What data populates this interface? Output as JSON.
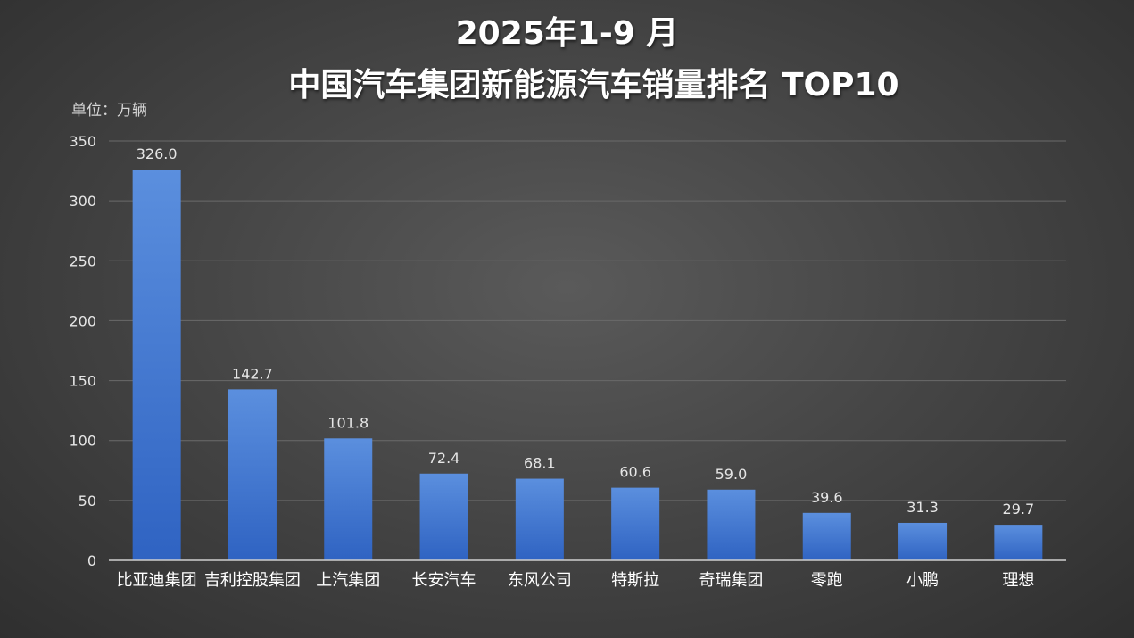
{
  "title_line1": "2025年1-9 月",
  "title_line2": "中国汽车集团新能源汽车销量排名  TOP10",
  "unit_label": "单位：万辆",
  "colors": {
    "bar_top": "#5b8fde",
    "bar_bottom": "#2f63c2",
    "text": "#ffffff",
    "axis_text": "#e6e6e6",
    "grid": "#6a6a6a"
  },
  "chart_data": {
    "type": "bar",
    "title": "2025年1-9 月 中国汽车集团新能源汽车销量排名  TOP10",
    "ylabel": "单位：万辆",
    "ylim": [
      0,
      350
    ],
    "yticks": [
      0,
      50,
      100,
      150,
      200,
      250,
      300,
      350
    ],
    "grid": true,
    "categories": [
      "比亚迪集团",
      "吉利控股集团",
      "上汽集团",
      "长安汽车",
      "东风公司",
      "特斯拉",
      "奇瑞集团",
      "零跑",
      "小鹏",
      "理想"
    ],
    "values": [
      326.0,
      142.7,
      101.8,
      72.4,
      68.1,
      60.6,
      59.0,
      39.6,
      31.3,
      29.7
    ],
    "value_labels": [
      "326.0",
      "142.7",
      "101.8",
      "72.4",
      "68.1",
      "60.6",
      "59.0",
      "39.6",
      "31.3",
      "29.7"
    ]
  }
}
